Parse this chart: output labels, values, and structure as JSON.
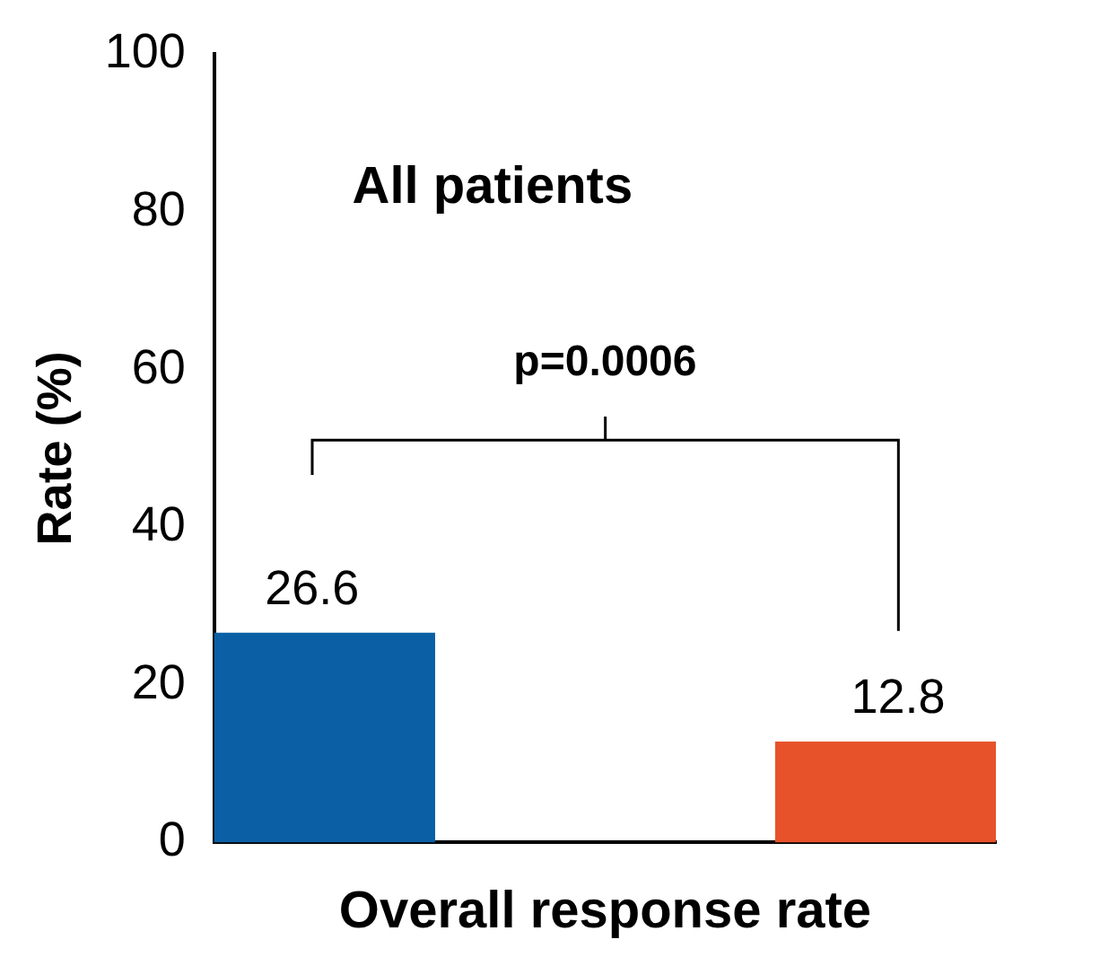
{
  "chart_data": {
    "type": "bar",
    "title": "All patients",
    "xlabel": "Overall response rate",
    "ylabel": "Rate (%)",
    "categories": [
      null,
      null
    ],
    "series": [
      {
        "color": "#0b5fa5",
        "values": [
          26.6,
          null
        ]
      },
      {
        "color": "#e8522a",
        "values": [
          null,
          12.8
        ]
      }
    ],
    "ylim": [
      0,
      100
    ],
    "yticks": [
      0,
      20,
      40,
      60,
      80,
      100
    ],
    "grid": false,
    "legend": false,
    "data_labels": true,
    "annotations": [
      "p=0.0006"
    ]
  }
}
